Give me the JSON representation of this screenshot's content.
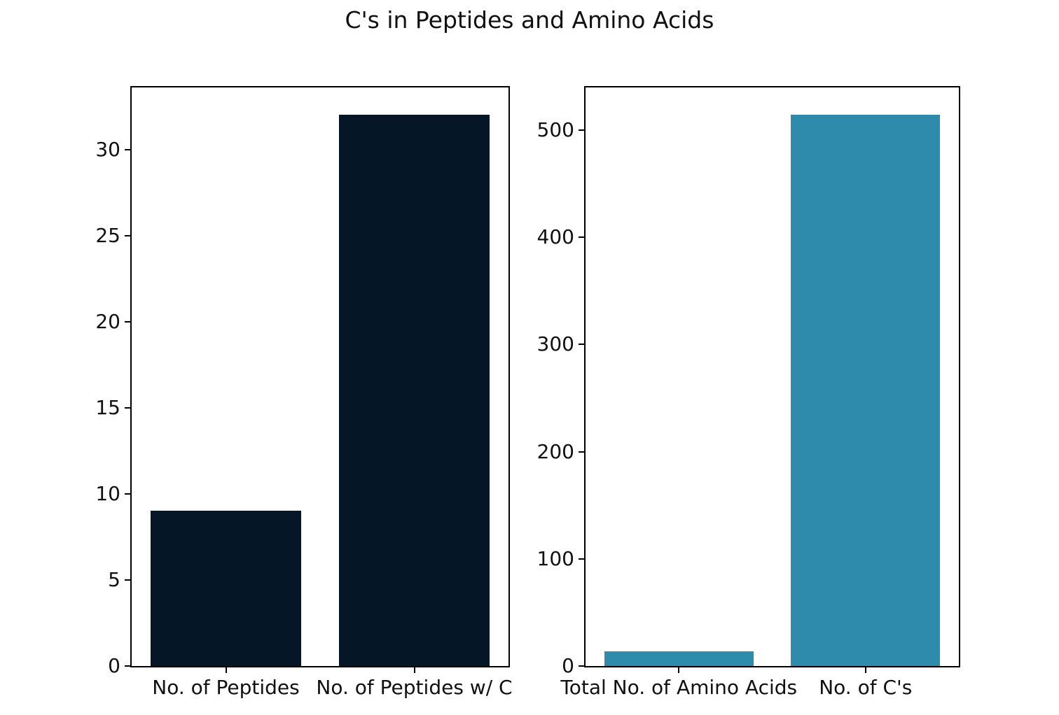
{
  "figure": {
    "title": "C's in Peptides and Amino Acids",
    "background_color": "#ffffff",
    "text_color": "#111111",
    "spine_color": "#000000"
  },
  "chart_data": [
    {
      "type": "bar",
      "name": "peptides-subplot",
      "title": "",
      "xlabel": "",
      "ylabel": "",
      "categories": [
        "No. of Peptides",
        "No. of Peptides w/ C"
      ],
      "values": [
        9,
        32
      ],
      "bar_color": "#051626",
      "ylim": [
        0,
        33.6
      ],
      "yticks": [
        0,
        5,
        10,
        15,
        20,
        25,
        30
      ],
      "grid": false,
      "legend": "none",
      "bar_width_fraction": 0.4,
      "bar_center_fractions": [
        0.25,
        0.75
      ]
    },
    {
      "type": "bar",
      "name": "amino-acids-subplot",
      "title": "",
      "xlabel": "",
      "ylabel": "",
      "categories": [
        "Total No. of Amino Acids",
        "No. of C's"
      ],
      "values": [
        14,
        514
      ],
      "bar_color": "#2f8bac",
      "ylim": [
        0,
        539.7
      ],
      "yticks": [
        0,
        100,
        200,
        300,
        400,
        500
      ],
      "grid": false,
      "legend": "none",
      "bar_width_fraction": 0.4,
      "bar_center_fractions": [
        0.25,
        0.75
      ]
    }
  ]
}
